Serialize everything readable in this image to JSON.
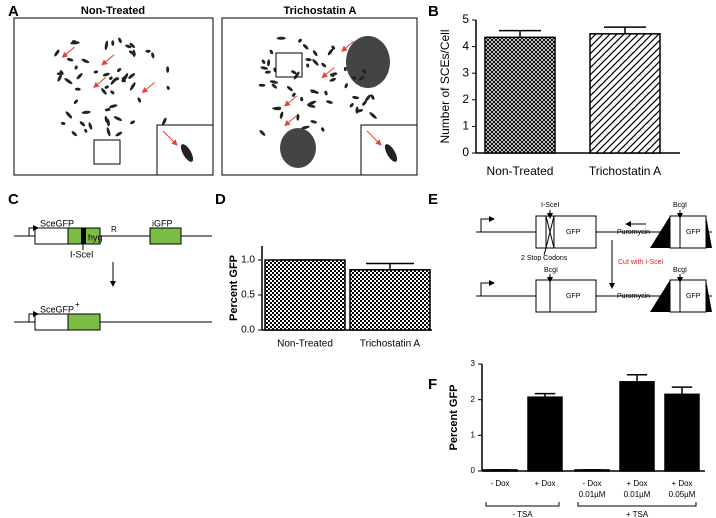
{
  "panel_labels": [
    "A",
    "B",
    "C",
    "D",
    "E",
    "F"
  ],
  "micrographs": [
    {
      "title": "Non-Treated"
    },
    {
      "title": "Trichostatin A"
    }
  ],
  "diagram_c": {
    "labels": [
      "SceGFP",
      "hyg",
      "R",
      "iGFP",
      "I-SceI",
      "SceGFP",
      "+"
    ]
  },
  "diagram_e": {
    "labels": [
      "I-SceI",
      "GFP",
      "Puromycin",
      "BcgI",
      "GFP",
      "2 Stop Codons",
      "Cut with I-SceI",
      "BcgI",
      "GFP",
      "Puromycin",
      "BcgI",
      "GFP"
    ]
  },
  "chart_data": [
    {
      "type": "bar",
      "y_label": "Number of SCEs/Cell",
      "categories": [
        "Non-Treated",
        "Trichostatin A"
      ],
      "values": [
        4.35,
        4.48
      ],
      "errors": [
        0.25,
        0.25
      ],
      "patterns": [
        "crosshatch",
        "diagonal"
      ],
      "color": "#000000",
      "ylim": [
        0,
        5
      ],
      "yticks": [
        0,
        1,
        2,
        3,
        4,
        5
      ]
    },
    {
      "type": "bar",
      "y_label": "Percent GFP",
      "categories": [
        "Non-Treated",
        "Trichostatin A"
      ],
      "values": [
        1.0,
        0.86
      ],
      "errors": [
        0,
        0.09
      ],
      "patterns": [
        "checker",
        "checker"
      ],
      "color": "#000000",
      "ylim": [
        0,
        1.2
      ],
      "yticks": [
        {
          "value": 0,
          "label": "0.0"
        },
        0.5,
        {
          "value": 1,
          "label": "1.0"
        }
      ]
    },
    {
      "type": "bar",
      "y_label": "Percent GFP",
      "categories": [
        "- Dox",
        "+ Dox",
        "- Dox",
        "+ Dox",
        "+ Dox"
      ],
      "sublabels": [
        null,
        null,
        "0.01µM",
        "0.01µM",
        "0.05µM"
      ],
      "groups": [
        "- TSA",
        "+ TSA"
      ],
      "values": [
        0.03,
        2.07,
        0.03,
        2.5,
        2.15
      ],
      "errors": [
        0,
        0.1,
        0,
        0.2,
        0.2
      ],
      "patterns": [
        "solid",
        "solid",
        "solid",
        "solid",
        "solid"
      ],
      "color": "#000000",
      "ylim": [
        0,
        3
      ],
      "yticks": [
        0,
        1,
        2,
        3
      ]
    }
  ]
}
